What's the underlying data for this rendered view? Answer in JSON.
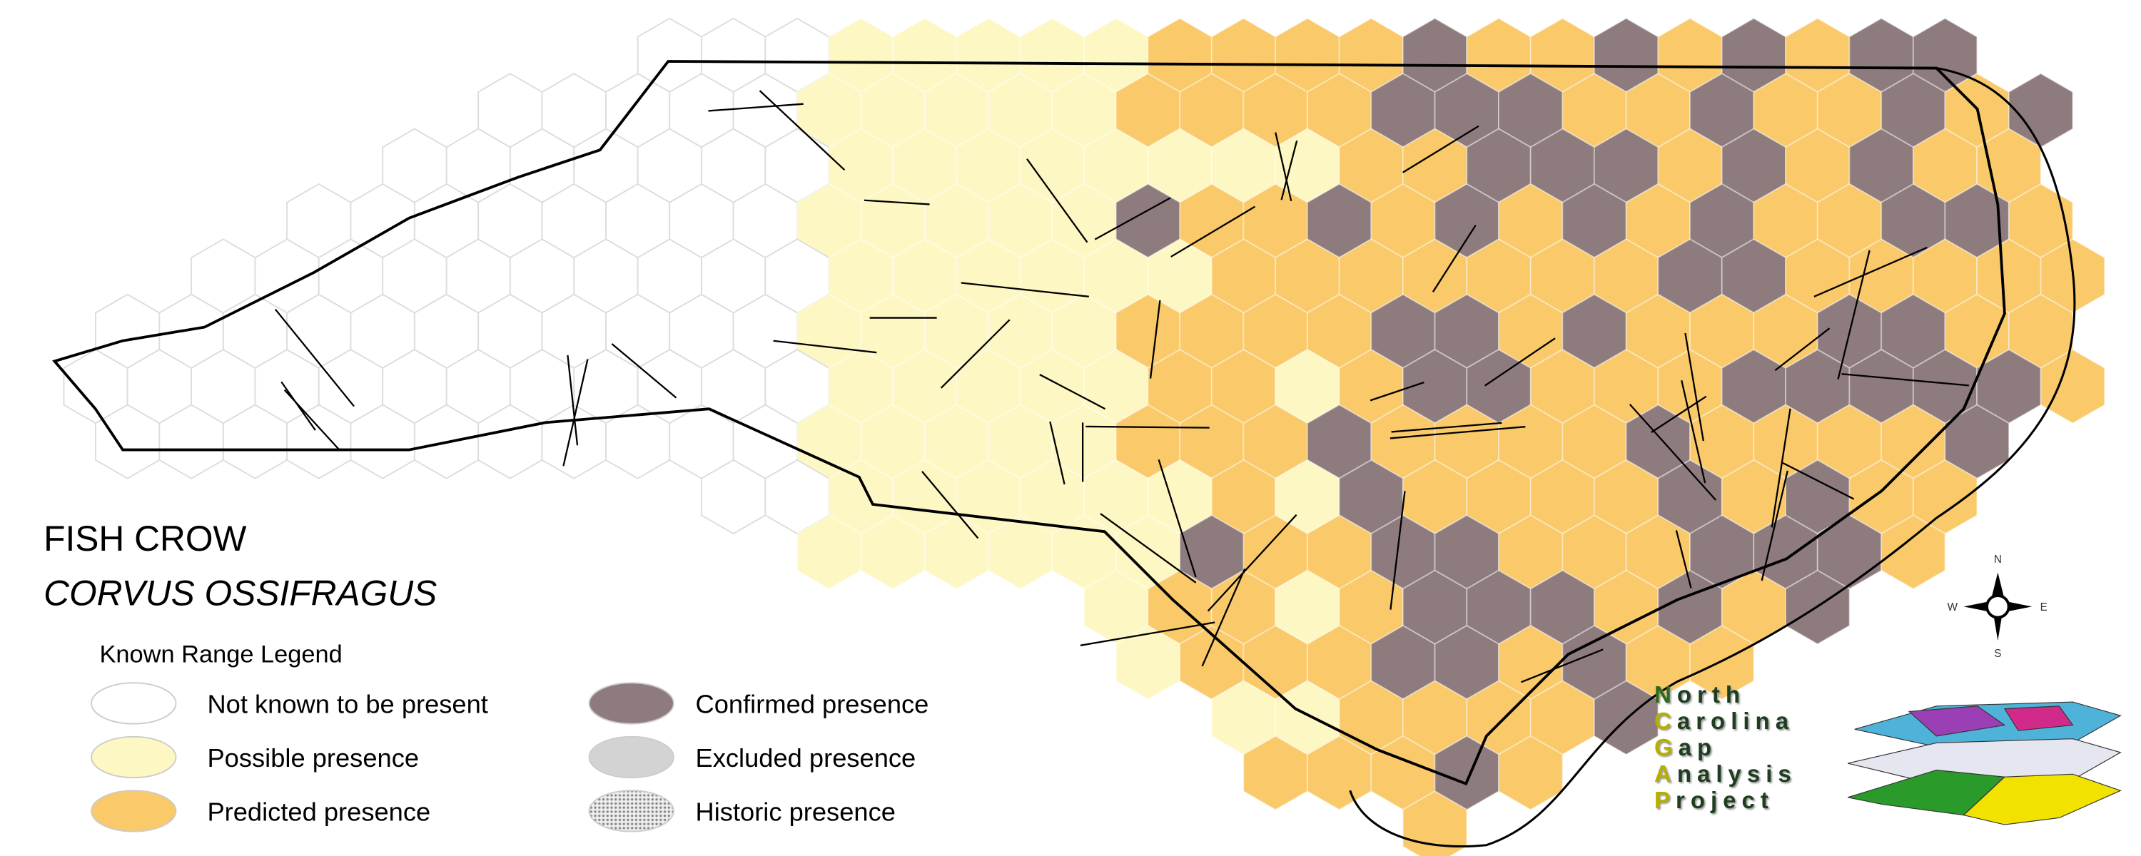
{
  "map": {
    "title": "FISH CROW",
    "subtitle": "CORVUS OSSIFRAGUS",
    "legend": {
      "title": "Known Range Legend",
      "items": [
        {
          "label": "Not known to be present",
          "color": "#ffffff"
        },
        {
          "label": "Possible presence",
          "color": "#fdf7c3"
        },
        {
          "label": "Predicted presence",
          "color": "#f9c96a"
        },
        {
          "label": "Confirmed presence",
          "color": "#8e7b7e"
        },
        {
          "label": "Excluded presence",
          "color": "#d3d3d3"
        },
        {
          "label": "Historic presence",
          "color": "#9a9a9a"
        }
      ]
    },
    "compass": {
      "north": "N",
      "south": "S",
      "east": "E",
      "west": "W"
    },
    "logo": [
      "North",
      "Carolina",
      "Gap",
      "Analysis",
      "Project"
    ]
  }
}
